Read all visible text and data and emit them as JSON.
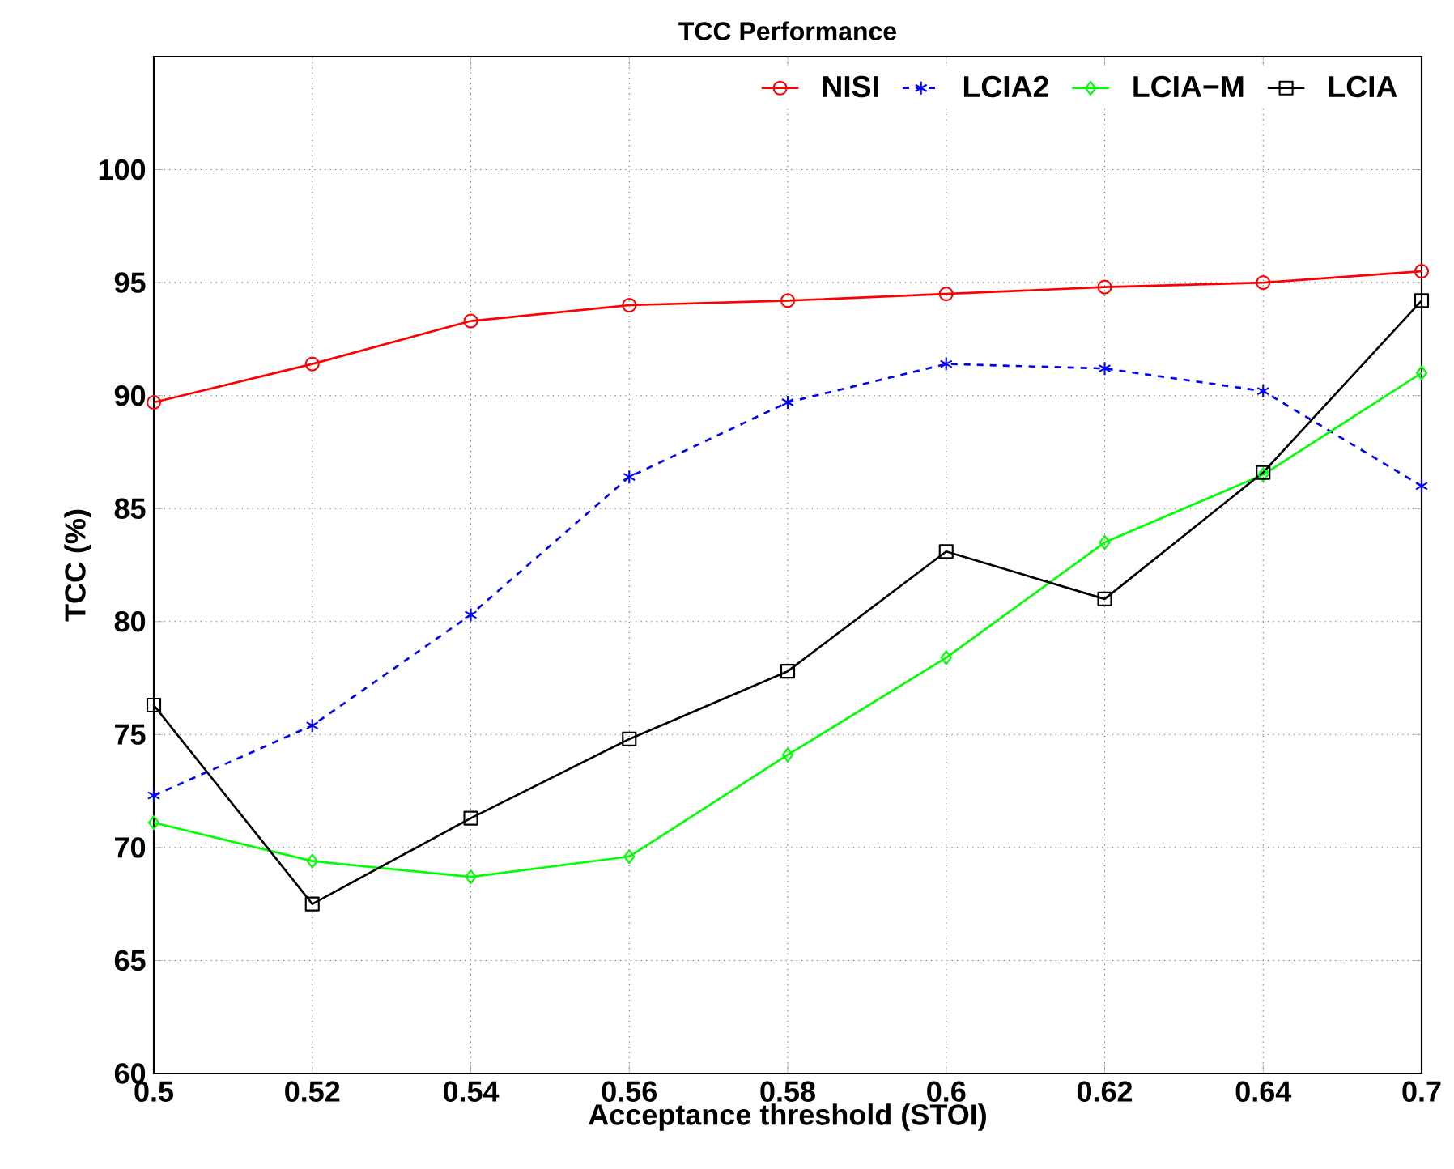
{
  "chart_data": {
    "type": "line",
    "title": "TCC Performance",
    "xlabel": "Acceptance threshold (STOI)",
    "ylabel": "TCC (%)",
    "categories": [
      "0.5",
      "0.52",
      "0.54",
      "0.56",
      "0.58",
      "0.6",
      "0.62",
      "0.64",
      "0.7"
    ],
    "ylim": [
      60,
      105
    ],
    "yticks": [
      60,
      65,
      70,
      75,
      80,
      85,
      90,
      95,
      100
    ],
    "grid": true,
    "legend": "top right",
    "series": [
      {
        "name": "NISI",
        "color": "#ff0000",
        "marker": "circle",
        "line_style": "solid",
        "values": [
          89.7,
          91.4,
          93.3,
          94.0,
          94.2,
          94.5,
          94.8,
          95.0,
          95.5
        ]
      },
      {
        "name": "LCIA2",
        "color": "#0000ff",
        "marker": "cross",
        "line_style": "dashed",
        "values": [
          72.3,
          75.4,
          80.3,
          86.4,
          89.7,
          91.4,
          91.2,
          90.2,
          86.0
        ]
      },
      {
        "name": "LCIA−M",
        "color": "#00ff00",
        "marker": "diamond",
        "line_style": "solid",
        "values": [
          71.1,
          69.4,
          68.7,
          69.6,
          74.1,
          78.4,
          83.5,
          86.5,
          91.0
        ]
      },
      {
        "name": "LCIA",
        "color": "#000000",
        "marker": "square",
        "line_style": "solid",
        "values": [
          76.3,
          67.5,
          71.3,
          74.8,
          77.8,
          83.1,
          81.0,
          86.6,
          94.2
        ]
      }
    ]
  }
}
